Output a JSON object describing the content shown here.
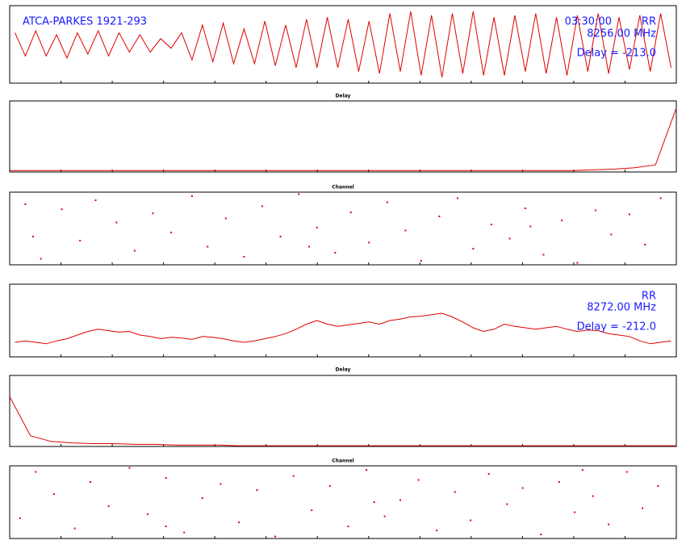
{
  "chart_data": [
    {
      "type": "line",
      "title": "ATCA-PARKES 1921-293",
      "annotations": [
        "03:30:00",
        "RR",
        "8256.00 MHz",
        "Delay = -213.0"
      ],
      "x_label": "Delay",
      "color": "#e00000",
      "xlim": [
        -256,
        256
      ],
      "ylim": [
        -1,
        1
      ],
      "x": [
        -252,
        -244,
        -236,
        -228,
        -220,
        -212,
        -204,
        -196,
        -188,
        -180,
        -172,
        -164,
        -156,
        -148,
        -140,
        -132,
        -124,
        -116,
        -108,
        -100,
        -92,
        -84,
        -76,
        -68,
        -60,
        -52,
        -44,
        -36,
        -28,
        -20,
        -12,
        -4,
        4,
        12,
        20,
        28,
        36,
        44,
        52,
        60,
        68,
        76,
        84,
        92,
        100,
        108,
        116,
        124,
        132,
        140,
        148,
        156,
        164,
        172,
        180,
        188,
        196,
        204,
        212,
        220,
        228,
        236,
        244,
        252
      ],
      "values": [
        0.3,
        -0.3,
        0.35,
        -0.3,
        0.25,
        -0.35,
        0.3,
        -0.25,
        0.35,
        -0.3,
        0.3,
        -0.2,
        0.25,
        -0.2,
        0.15,
        -0.1,
        0.3,
        -0.4,
        0.5,
        -0.45,
        0.55,
        -0.5,
        0.4,
        -0.5,
        0.6,
        -0.55,
        0.5,
        -0.6,
        0.65,
        -0.6,
        0.7,
        -0.6,
        0.65,
        -0.7,
        0.6,
        -0.75,
        0.8,
        -0.7,
        0.85,
        -0.8,
        0.75,
        -0.85,
        0.8,
        -0.75,
        0.85,
        -0.8,
        0.7,
        -0.8,
        0.75,
        -0.7,
        0.8,
        -0.75,
        0.7,
        -0.8,
        0.75,
        -0.7,
        0.8,
        -0.75,
        0.7,
        -0.65,
        0.75,
        -0.7,
        0.8,
        -0.6
      ]
    },
    {
      "type": "line",
      "x_label": "Channel",
      "color": "#e00000",
      "xlim": [
        0,
        256
      ],
      "ylim": [
        0,
        1
      ],
      "x": [
        0,
        8,
        16,
        24,
        32,
        40,
        48,
        56,
        64,
        72,
        80,
        88,
        96,
        104,
        112,
        120,
        128,
        136,
        144,
        152,
        160,
        168,
        176,
        184,
        192,
        200,
        208,
        216,
        224,
        232,
        240,
        248,
        256
      ],
      "values": [
        0.02,
        0.02,
        0.02,
        0.02,
        0.02,
        0.02,
        0.02,
        0.02,
        0.02,
        0.02,
        0.02,
        0.02,
        0.02,
        0.02,
        0.02,
        0.02,
        0.02,
        0.02,
        0.02,
        0.02,
        0.02,
        0.02,
        0.02,
        0.02,
        0.02,
        0.02,
        0.02,
        0.02,
        0.03,
        0.04,
        0.06,
        0.1,
        0.9
      ]
    },
    {
      "type": "scatter",
      "color": "#e00000",
      "xlim": [
        0,
        256
      ],
      "ylim": [
        -180,
        180
      ],
      "x": [
        6,
        12,
        20,
        27,
        33,
        41,
        48,
        55,
        62,
        70,
        76,
        83,
        90,
        97,
        104,
        111,
        118,
        125,
        131,
        138,
        145,
        152,
        158,
        165,
        172,
        178,
        185,
        192,
        198,
        205,
        212,
        218,
        225,
        231,
        238,
        244,
        250,
        9,
        115,
        200
      ],
      "values": [
        120,
        -150,
        95,
        -60,
        140,
        30,
        -110,
        75,
        -20,
        160,
        -90,
        50,
        -140,
        110,
        -40,
        170,
        5,
        -120,
        80,
        -70,
        130,
        -10,
        -160,
        60,
        150,
        -100,
        20,
        -50,
        100,
        -130,
        40,
        -170,
        90,
        -30,
        70,
        -80,
        150,
        -40,
        -90,
        10
      ]
    },
    {
      "type": "line",
      "annotations": [
        "RR",
        "8272.00 MHz",
        "Delay = -212.0"
      ],
      "x_label": "Delay",
      "color": "#e00000",
      "xlim": [
        -256,
        256
      ],
      "ylim": [
        0,
        1
      ],
      "x": [
        -252,
        -244,
        -236,
        -228,
        -220,
        -212,
        -204,
        -196,
        -188,
        -180,
        -172,
        -164,
        -156,
        -148,
        -140,
        -132,
        -124,
        -116,
        -108,
        -100,
        -92,
        -84,
        -76,
        -68,
        -60,
        -52,
        -44,
        -36,
        -28,
        -20,
        -12,
        -4,
        4,
        12,
        20,
        28,
        36,
        44,
        52,
        60,
        68,
        76,
        84,
        92,
        100,
        108,
        116,
        124,
        132,
        140,
        148,
        156,
        164,
        172,
        180,
        188,
        196,
        204,
        212,
        220,
        228,
        236,
        244,
        252
      ],
      "values": [
        0.2,
        0.22,
        0.2,
        0.18,
        0.22,
        0.25,
        0.3,
        0.35,
        0.38,
        0.36,
        0.34,
        0.35,
        0.3,
        0.28,
        0.25,
        0.27,
        0.26,
        0.24,
        0.28,
        0.27,
        0.25,
        0.22,
        0.2,
        0.22,
        0.25,
        0.28,
        0.32,
        0.38,
        0.45,
        0.5,
        0.45,
        0.42,
        0.44,
        0.46,
        0.48,
        0.45,
        0.5,
        0.52,
        0.55,
        0.56,
        0.58,
        0.6,
        0.55,
        0.48,
        0.4,
        0.35,
        0.38,
        0.45,
        0.42,
        0.4,
        0.38,
        0.4,
        0.42,
        0.38,
        0.35,
        0.37,
        0.36,
        0.32,
        0.3,
        0.28,
        0.22,
        0.18,
        0.2,
        0.22
      ]
    },
    {
      "type": "line",
      "x_label": "Channel",
      "color": "#e00000",
      "xlim": [
        0,
        256
      ],
      "ylim": [
        0,
        1
      ],
      "x": [
        0,
        8,
        16,
        24,
        32,
        40,
        48,
        56,
        64,
        72,
        80,
        88,
        96,
        104,
        112,
        120,
        128,
        136,
        144,
        152,
        160,
        168,
        176,
        184,
        192,
        200,
        208,
        216,
        224,
        232,
        240,
        248,
        256
      ],
      "values": [
        0.7,
        0.15,
        0.07,
        0.05,
        0.04,
        0.04,
        0.03,
        0.03,
        0.02,
        0.02,
        0.02,
        0.01,
        0.01,
        0.01,
        0.01,
        0.01,
        0.01,
        0.01,
        0.01,
        0.01,
        0.01,
        0.01,
        0.01,
        0.01,
        0.01,
        0.01,
        0.01,
        0.01,
        0.01,
        0.01,
        0.01,
        0.01,
        0.01
      ]
    },
    {
      "type": "scatter",
      "color": "#e00000",
      "xlim": [
        0,
        256
      ],
      "ylim": [
        -180,
        180
      ],
      "x": [
        4,
        10,
        17,
        25,
        31,
        38,
        46,
        53,
        60,
        67,
        74,
        81,
        88,
        95,
        102,
        109,
        116,
        123,
        130,
        137,
        144,
        150,
        157,
        164,
        171,
        177,
        184,
        191,
        197,
        204,
        211,
        217,
        224,
        230,
        237,
        243,
        249,
        60,
        140,
        220
      ],
      "values": [
        -80,
        150,
        40,
        -130,
        100,
        -20,
        170,
        -60,
        120,
        -150,
        20,
        90,
        -100,
        60,
        -170,
        130,
        -40,
        80,
        -120,
        160,
        -70,
        10,
        110,
        -140,
        50,
        -90,
        140,
        -10,
        70,
        -160,
        100,
        -50,
        30,
        -110,
        150,
        -30,
        80,
        -120,
        0,
        160
      ]
    }
  ]
}
